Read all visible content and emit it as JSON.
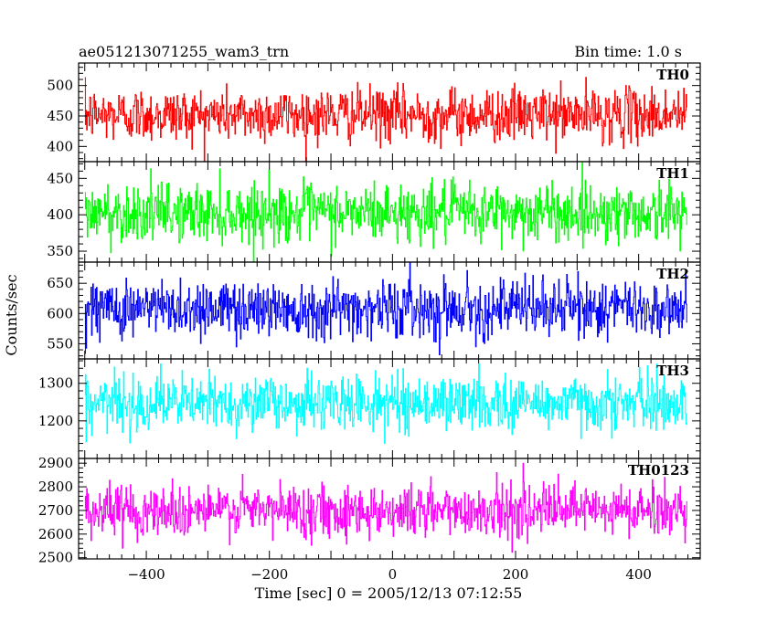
{
  "chart_data": {
    "type": "line",
    "title_left": "ae051213071255_wam3_trn",
    "title_right": "Bin time: 1.0 s",
    "xlabel": "Time [sec] 0 = 2005/12/13 07:12:55",
    "ylabel": "Counts/sec",
    "x_range": [
      -510,
      500
    ],
    "x_ticks": [
      -400,
      -200,
      0,
      200,
      400
    ],
    "x_tick_labels": [
      "−400",
      "−200",
      "0",
      "200",
      "400"
    ],
    "x_data_range": [
      -500,
      478
    ],
    "bin_time_s": 1.0,
    "series": [
      {
        "name": "TH0",
        "color": "#ff0000",
        "mean": 452,
        "sd": 22,
        "ylim": [
          375,
          537
        ],
        "ticks": [
          400,
          450,
          500
        ],
        "tick_labels": [
          "400",
          "450",
          "500"
        ]
      },
      {
        "name": "TH1",
        "color": "#00ff00",
        "mean": 403,
        "sd": 20,
        "ylim": [
          335,
          473
        ],
        "ticks": [
          350,
          400,
          450
        ],
        "tick_labels": [
          "350",
          "400",
          "450"
        ]
      },
      {
        "name": "TH2",
        "color": "#0000ff",
        "mean": 609,
        "sd": 24,
        "ylim": [
          525,
          685
        ],
        "ticks": [
          550,
          600,
          650
        ],
        "tick_labels": [
          "550",
          "600",
          "650"
        ]
      },
      {
        "name": "TH3",
        "color": "#00ffff",
        "mean": 1248,
        "sd": 36,
        "ylim": [
          1100,
          1365
        ],
        "ticks": [
          1200,
          1300
        ],
        "tick_labels": [
          "1200",
          "1300"
        ]
      },
      {
        "name": "TH0123",
        "color": "#ff00ff",
        "mean": 2700,
        "sd": 55,
        "ylim": [
          2495,
          2920
        ],
        "ticks": [
          2500,
          2600,
          2700,
          2800,
          2900
        ],
        "tick_labels": [
          "2500",
          "2600",
          "2700",
          "2800",
          "2900"
        ]
      }
    ]
  }
}
